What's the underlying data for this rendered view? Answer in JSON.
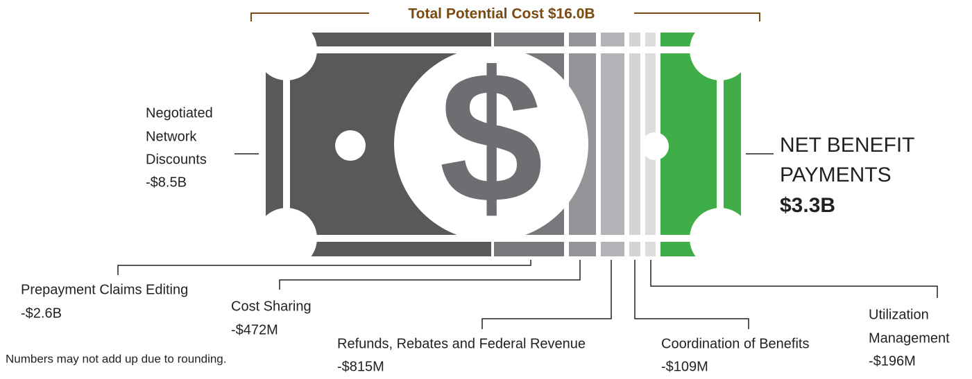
{
  "header": {
    "title": "Total Potential Cost $16.0B"
  },
  "bill_symbol": "$",
  "net": {
    "lines": [
      "NET BENEFIT",
      "PAYMENTS"
    ],
    "value": "$3.3B"
  },
  "segments": [
    {
      "label": [
        "Negotiated",
        "Network",
        "Discounts"
      ],
      "value": "-$8.5B"
    },
    {
      "label": [
        "Prepayment Claims Editing"
      ],
      "value": "-$2.6B"
    },
    {
      "label": [
        "Cost Sharing"
      ],
      "value": "-$472M"
    },
    {
      "label": [
        "Refunds, Rebates and Federal Revenue"
      ],
      "value": "-$815M"
    },
    {
      "label": [
        "Coordination of Benefits"
      ],
      "value": "-$109M"
    },
    {
      "label": [
        "Utilization",
        "Management"
      ],
      "value": "-$196M"
    }
  ],
  "footnote": "Numbers may not add up due to rounding."
}
